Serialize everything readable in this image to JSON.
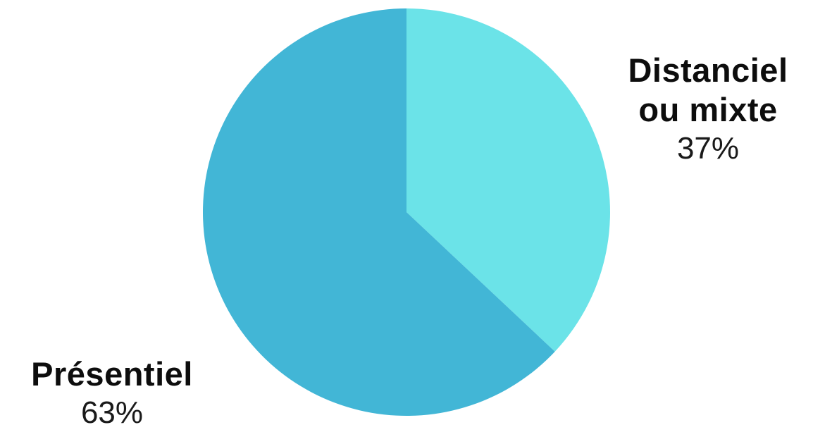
{
  "chart_data": {
    "type": "pie",
    "slices": [
      {
        "name_lines": [
          "Distanciel",
          "ou mixte"
        ],
        "value": 37,
        "value_label": "37%",
        "color": "#6BE3E8"
      },
      {
        "name_lines": [
          "Présentiel"
        ],
        "value": 63,
        "value_label": "63%",
        "color": "#42B6D6"
      }
    ],
    "start_angle_deg": 0,
    "direction": "clockwise",
    "legend": "none",
    "title": ""
  }
}
